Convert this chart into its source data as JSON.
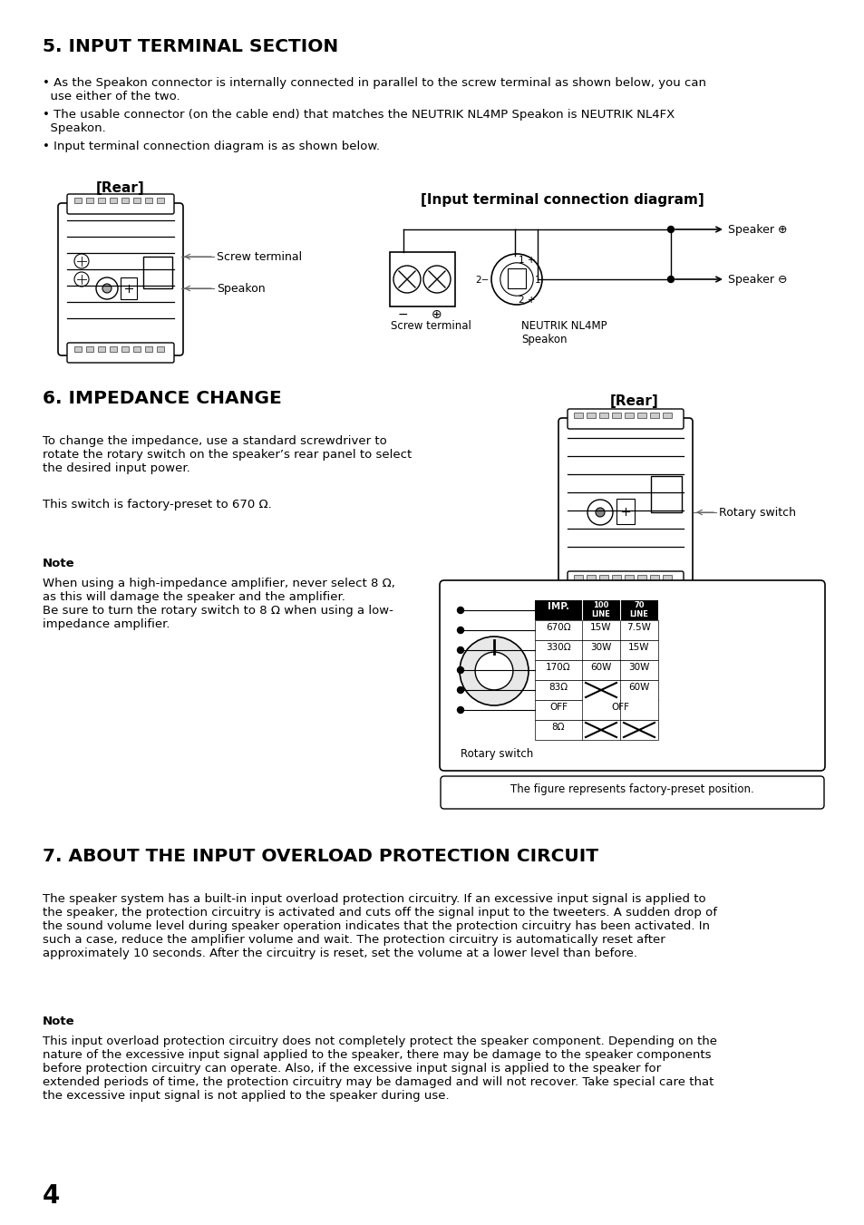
{
  "page_bg": "#ffffff",
  "page_number": "4",
  "section5_title": "5. INPUT TERMINAL SECTION",
  "bullet1": "• As the Speakon connector is internally connected in parallel to the screw terminal as shown below, you can\n  use either of the two.",
  "bullet2": "• The usable connector (on the cable end) that matches the NEUTRIK NL4MP Speakon is NEUTRIK NL4FX\n  Speakon.",
  "bullet3": "• Input terminal connection diagram is as shown below.",
  "rear_label": "[Rear]",
  "input_terminal_label": "[Input terminal connection diagram]",
  "screw_terminal_label": "Screw terminal",
  "speakon_label": "Speakon",
  "speaker_plus_label": "Speaker ⊕",
  "speaker_minus_label": "Speaker ⊖",
  "neutrik_label": "NEUTRIK NL4MP\nSpeakon",
  "screw_terminal_label2": "Screw terminal",
  "section6_title": "6. IMPEDANCE CHANGE",
  "rear_label2": "[Rear]",
  "section6_para1": "To change the impedance, use a standard screwdriver to\nrotate the rotary switch on the speaker’s rear panel to select\nthe desired input power.",
  "section6_para2": "This switch is factory-preset to 670 Ω.",
  "rotary_switch_label": "Rotary switch",
  "rotary_switch_label2": "Rotary switch",
  "note_label": "Note",
  "section6_note": "When using a high-impedance amplifier, never select 8 Ω,\nas this will damage the speaker and the amplifier.\nBe sure to turn the rotary switch to 8 Ω when using a low-\nimpedance amplifier.",
  "table_caption": "The figure represents factory-preset position.",
  "section7_title": "7. ABOUT THE INPUT OVERLOAD PROTECTION CIRCUIT",
  "section7_para": "The speaker system has a built-in input overload protection circuitry. If an excessive input signal is applied to\nthe speaker, the protection circuitry is activated and cuts off the signal input to the tweeters. A sudden drop of\nthe sound volume level during speaker operation indicates that the protection circuitry has been activated. In\nsuch a case, reduce the amplifier volume and wait. The protection circuitry is automatically reset after\napproximately 10 seconds. After the circuitry is reset, set the volume at a lower level than before.",
  "note_label2": "Note",
  "section7_note": "This input overload protection circuitry does not completely protect the speaker component. Depending on the\nnature of the excessive input signal applied to the speaker, there may be damage to the speaker components\nbefore protection circuitry can operate. Also, if the excessive input signal is applied to the speaker for\nextended periods of time, the protection circuitry may be damaged and will not recover. Take special care that\nthe excessive input signal is not applied to the speaker during use."
}
